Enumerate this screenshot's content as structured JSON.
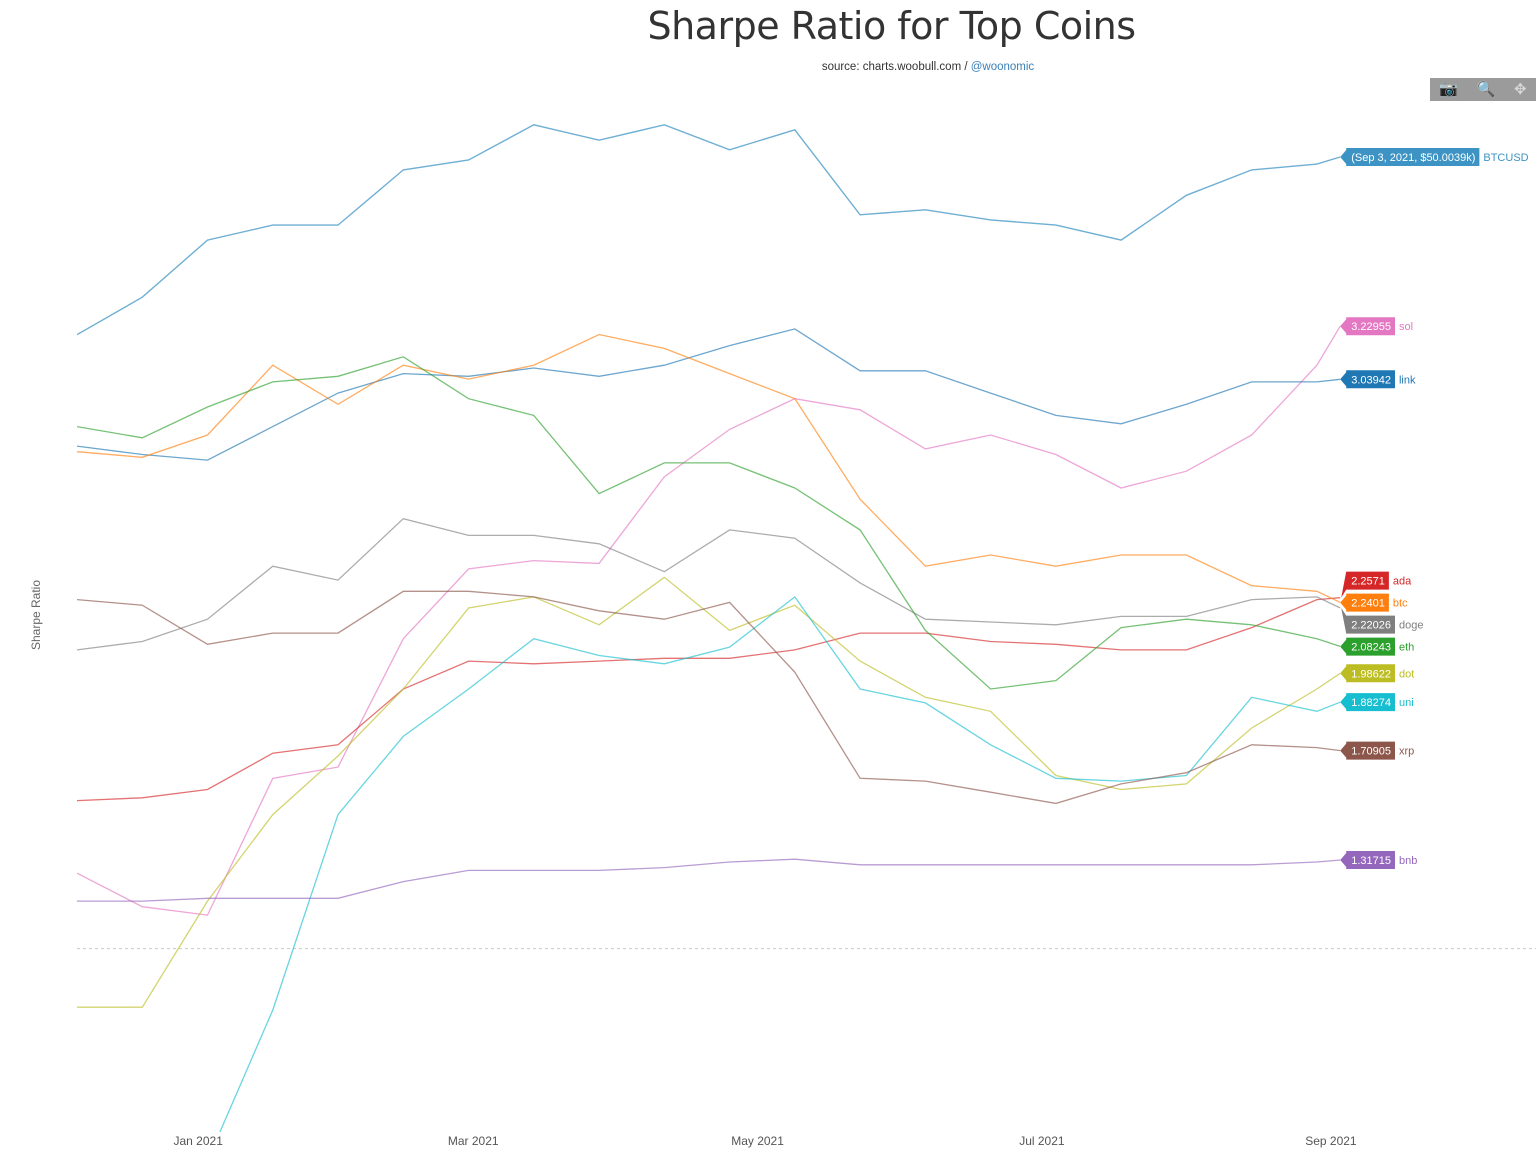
{
  "chart_data": {
    "type": "line",
    "title": "Sharpe Ratio for Top Coins",
    "subtitle": {
      "prefix": "source: charts.woobull.com / ",
      "link": "@woonomic"
    },
    "ylabel": "Sharpe Ratio",
    "xlabel": "",
    "xlim": [
      "2020-12-06",
      "2021-10-15"
    ],
    "x_ticks": [
      {
        "date": "2021-01-01",
        "label": "Jan 2021"
      },
      {
        "date": "2021-03-01",
        "label": "Mar 2021"
      },
      {
        "date": "2021-05-01",
        "label": "May 2021"
      },
      {
        "date": "2021-07-01",
        "label": "Jul 2021"
      },
      {
        "date": "2021-09-01",
        "label": "Sep 2021"
      }
    ],
    "ylim": [
      0.35,
      4.04
    ],
    "y_ticks_shown": false,
    "grid": false,
    "reference_line": {
      "y": 1,
      "style": "dashed"
    },
    "secondary_axis": {
      "series": "BTCUSD",
      "scale": "log",
      "unit": "thousand USD",
      "range": [
        0.25,
        68.2
      ],
      "visible": false
    },
    "x": [
      "2020-12-06",
      "2020-12-20",
      "2021-01-03",
      "2021-01-17",
      "2021-01-31",
      "2021-02-14",
      "2021-02-28",
      "2021-03-14",
      "2021-03-28",
      "2021-04-11",
      "2021-04-25",
      "2021-05-09",
      "2021-05-23",
      "2021-06-06",
      "2021-06-20",
      "2021-07-04",
      "2021-07-18",
      "2021-08-01",
      "2021-08-15",
      "2021-08-29",
      "2021-09-03"
    ],
    "price_series": {
      "name": "BTCUSD",
      "color": "#3d94c4",
      "axis": "secondary",
      "values": [
        19.0,
        23.3,
        31.8,
        34.5,
        34.5,
        46.6,
        49.2,
        59.6,
        54.8,
        59.6,
        52.0,
        58.0,
        36.5,
        37.5,
        35.5,
        34.5,
        31.8,
        40.6,
        46.6,
        48.1,
        50.0039
      ],
      "last_label": "(Sep 3, 2021, $50.0039k)"
    },
    "series": [
      {
        "name": "sol",
        "color": "#e377c2",
        "last_label": "3.22955",
        "values": [
          1.27,
          1.15,
          1.12,
          1.61,
          1.65,
          2.11,
          2.36,
          2.39,
          2.38,
          2.69,
          2.86,
          2.97,
          2.93,
          2.79,
          2.84,
          2.77,
          2.65,
          2.71,
          2.84,
          3.09,
          3.22955
        ]
      },
      {
        "name": "link",
        "color": "#1f77b4",
        "last_label": "3.03942",
        "values": [
          2.8,
          2.77,
          2.75,
          2.87,
          2.99,
          3.06,
          3.05,
          3.08,
          3.05,
          3.09,
          3.16,
          3.22,
          3.07,
          3.07,
          2.99,
          2.91,
          2.88,
          2.95,
          3.03,
          3.03,
          3.03942
        ]
      },
      {
        "name": "ada",
        "color": "#d62728",
        "last_label": "2.2571",
        "values": [
          1.53,
          1.54,
          1.57,
          1.7,
          1.73,
          1.93,
          2.03,
          2.02,
          2.03,
          2.04,
          2.04,
          2.07,
          2.13,
          2.13,
          2.1,
          2.09,
          2.07,
          2.07,
          2.15,
          2.25,
          2.2571
        ]
      },
      {
        "name": "btc",
        "color": "#ff7f0e",
        "last_label": "2.2401",
        "values": [
          2.78,
          2.76,
          2.84,
          3.09,
          2.95,
          3.09,
          3.04,
          3.09,
          3.2,
          3.15,
          3.06,
          2.97,
          2.61,
          2.37,
          2.41,
          2.37,
          2.41,
          2.41,
          2.3,
          2.28,
          2.2401
        ]
      },
      {
        "name": "doge",
        "color": "#7f7f7f",
        "last_label": "2.22026",
        "values": [
          2.07,
          2.1,
          2.18,
          2.37,
          2.32,
          2.54,
          2.48,
          2.48,
          2.45,
          2.35,
          2.5,
          2.47,
          2.31,
          2.18,
          2.17,
          2.16,
          2.19,
          2.19,
          2.25,
          2.26,
          2.22026
        ]
      },
      {
        "name": "eth",
        "color": "#2ca02c",
        "last_label": "2.08243",
        "values": [
          2.87,
          2.83,
          2.94,
          3.03,
          3.05,
          3.12,
          2.97,
          2.91,
          2.63,
          2.74,
          2.74,
          2.65,
          2.5,
          2.14,
          1.93,
          1.96,
          2.15,
          2.18,
          2.16,
          2.11,
          2.08243
        ]
      },
      {
        "name": "dot",
        "color": "#bcbd22",
        "last_label": "1.98622",
        "values": [
          0.79,
          0.79,
          1.17,
          1.48,
          1.69,
          1.93,
          2.22,
          2.26,
          2.16,
          2.33,
          2.14,
          2.23,
          2.03,
          1.9,
          1.85,
          1.62,
          1.57,
          1.59,
          1.79,
          1.93,
          1.98622
        ]
      },
      {
        "name": "uni",
        "color": "#17becf",
        "last_label": "1.88274",
        "values": [
          null,
          null,
          0.24,
          0.78,
          1.48,
          1.76,
          1.93,
          2.11,
          2.05,
          2.02,
          2.08,
          2.26,
          1.93,
          1.88,
          1.73,
          1.61,
          1.6,
          1.62,
          1.9,
          1.85,
          1.88274
        ]
      },
      {
        "name": "xrp",
        "color": "#8c564b",
        "last_label": "1.70905",
        "values": [
          2.25,
          2.23,
          2.09,
          2.13,
          2.13,
          2.28,
          2.28,
          2.26,
          2.21,
          2.18,
          2.24,
          1.99,
          1.61,
          1.6,
          1.56,
          1.52,
          1.59,
          1.63,
          1.73,
          1.72,
          1.70905
        ]
      },
      {
        "name": "bnb",
        "color": "#9467bd",
        "last_label": "1.31715",
        "values": [
          1.17,
          1.17,
          1.18,
          1.18,
          1.18,
          1.24,
          1.28,
          1.28,
          1.28,
          1.29,
          1.31,
          1.32,
          1.3,
          1.3,
          1.3,
          1.3,
          1.3,
          1.3,
          1.3,
          1.31,
          1.31715
        ]
      }
    ]
  },
  "modebar": {
    "buttons": [
      {
        "icon": "camera-icon",
        "glyph": "📷",
        "label": "Download plot as a png"
      },
      {
        "icon": "zoom-icon",
        "glyph": "🔍",
        "label": "Zoom"
      },
      {
        "icon": "pan-icon",
        "glyph": "✥",
        "label": "Pan"
      }
    ],
    "background": "#9b9b9b"
  }
}
